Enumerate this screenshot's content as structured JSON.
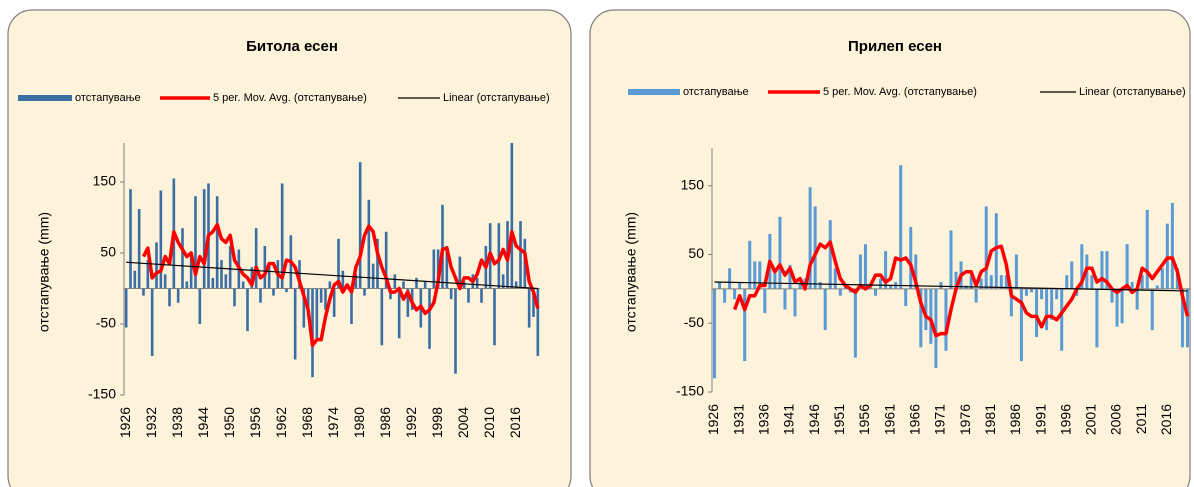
{
  "chart_data": [
    {
      "type": "bar",
      "title": "Битола есен",
      "y_label": "отстапување (mm)",
      "x": [
        1926,
        1927,
        1928,
        1929,
        1930,
        1931,
        1932,
        1933,
        1934,
        1935,
        1936,
        1937,
        1938,
        1939,
        1940,
        1941,
        1942,
        1943,
        1944,
        1945,
        1946,
        1947,
        1948,
        1949,
        1950,
        1951,
        1952,
        1953,
        1954,
        1955,
        1956,
        1957,
        1958,
        1959,
        1960,
        1961,
        1962,
        1963,
        1964,
        1965,
        1966,
        1967,
        1968,
        1969,
        1970,
        1971,
        1972,
        1973,
        1974,
        1975,
        1976,
        1977,
        1978,
        1979,
        1980,
        1981,
        1982,
        1983,
        1984,
        1985,
        1986,
        1987,
        1988,
        1989,
        1990,
        1991,
        1992,
        1993,
        1994,
        1995,
        1996,
        1997,
        1998,
        1999,
        2000,
        2001,
        2002,
        2003,
        2004,
        2005,
        2006,
        2007,
        2008,
        2009,
        2010,
        2011,
        2012,
        2013,
        2014,
        2015,
        2016,
        2017,
        2018,
        2019,
        2020,
        2021
      ],
      "xlim": [
        1925.5,
        2021.5
      ],
      "xticks": [
        1926,
        1932,
        1938,
        1944,
        1950,
        1956,
        1962,
        1968,
        1974,
        1980,
        1986,
        1992,
        1998,
        2004,
        2010,
        2016
      ],
      "ylim": [
        -150,
        205
      ],
      "yticks": [
        -150,
        -50,
        50,
        150
      ],
      "series": [
        {
          "name": "отстапување",
          "type": "bar",
          "color": "#3a6ea5",
          "values": [
            -55,
            140,
            25,
            112,
            -10,
            40,
            -95,
            65,
            138,
            20,
            -25,
            155,
            -20,
            85,
            10,
            50,
            130,
            -50,
            140,
            148,
            15,
            130,
            40,
            20,
            60,
            -25,
            55,
            10,
            -60,
            30,
            85,
            -20,
            60,
            35,
            -10,
            40,
            148,
            -5,
            75,
            -100,
            40,
            -55,
            -40,
            -125,
            -70,
            -20,
            -30,
            10,
            -40,
            70,
            25,
            5,
            -50,
            20,
            178,
            -10,
            125,
            35,
            70,
            -80,
            80,
            -15,
            20,
            -70,
            10,
            -40,
            -30,
            15,
            -55,
            10,
            -85,
            55,
            55,
            118,
            60,
            -15,
            -120,
            45,
            10,
            -20,
            20,
            15,
            -20,
            60,
            92,
            -80,
            92,
            20,
            95,
            205,
            10,
            95,
            70,
            -55,
            -40,
            -95
          ]
        },
        {
          "name": "5 per. Mov. Avg. (отстапување)",
          "type": "line",
          "color": "#ff0000",
          "values": [
            null,
            null,
            null,
            null,
            45,
            57,
            15,
            22,
            25,
            45,
            35,
            80,
            65,
            55,
            45,
            50,
            20,
            45,
            35,
            75,
            80,
            90,
            70,
            65,
            75,
            40,
            30,
            20,
            15,
            5,
            30,
            15,
            20,
            35,
            35,
            20,
            15,
            40,
            38,
            30,
            10,
            -10,
            -30,
            -80,
            -72,
            -72,
            -40,
            -15,
            5,
            10,
            -5,
            5,
            -5,
            30,
            45,
            75,
            88,
            80,
            50,
            30,
            15,
            -5,
            -5,
            0,
            -15,
            -5,
            -20,
            -30,
            -25,
            -35,
            -30,
            -20,
            10,
            55,
            57,
            30,
            15,
            0,
            15,
            15,
            10,
            20,
            40,
            30,
            50,
            35,
            40,
            55,
            40,
            80,
            60,
            55,
            50,
            10,
            -5,
            -28
          ]
        },
        {
          "name": "Linear (отстапување)",
          "type": "trend",
          "color": "#000000",
          "x": [
            1926,
            2021
          ],
          "values": [
            37,
            0
          ]
        }
      ]
    },
    {
      "type": "bar",
      "title": "Прилеп есен",
      "y_label": "отстапување (mm)",
      "x": [
        1926,
        1927,
        1928,
        1929,
        1930,
        1931,
        1932,
        1933,
        1934,
        1935,
        1936,
        1937,
        1938,
        1939,
        1940,
        1941,
        1942,
        1943,
        1944,
        1945,
        1946,
        1947,
        1948,
        1949,
        1950,
        1951,
        1952,
        1953,
        1954,
        1955,
        1956,
        1957,
        1958,
        1959,
        1960,
        1961,
        1962,
        1963,
        1964,
        1965,
        1966,
        1967,
        1968,
        1969,
        1970,
        1971,
        1972,
        1973,
        1974,
        1975,
        1976,
        1977,
        1978,
        1979,
        1980,
        1981,
        1982,
        1983,
        1984,
        1985,
        1986,
        1987,
        1988,
        1989,
        1990,
        1991,
        1992,
        1993,
        1994,
        1995,
        1996,
        1997,
        1998,
        1999,
        2000,
        2001,
        2002,
        2003,
        2004,
        2005,
        2006,
        2007,
        2008,
        2009,
        2010,
        2011,
        2012,
        2013,
        2014,
        2015,
        2016,
        2017,
        2018,
        2019,
        2020
      ],
      "xlim": [
        1925.5,
        2020.5
      ],
      "xticks": [
        1926,
        1931,
        1936,
        1941,
        1946,
        1951,
        1956,
        1961,
        1966,
        1971,
        1976,
        1981,
        1986,
        1991,
        1996,
        2001,
        2006,
        2011,
        2016
      ],
      "ylim": [
        -150,
        205
      ],
      "yticks": [
        -150,
        -50,
        50,
        150
      ],
      "series": [
        {
          "name": "отстапување",
          "type": "bar",
          "color": "#5b9bd5",
          "values": [
            -130,
            10,
            -20,
            30,
            -15,
            10,
            -105,
            70,
            40,
            40,
            -35,
            80,
            30,
            105,
            -30,
            35,
            -40,
            10,
            15,
            148,
            120,
            10,
            -60,
            100,
            30,
            -10,
            5,
            -5,
            -100,
            50,
            65,
            5,
            -10,
            15,
            55,
            5,
            10,
            180,
            -25,
            90,
            50,
            -85,
            -60,
            -80,
            -115,
            10,
            -90,
            85,
            25,
            40,
            5,
            20,
            -20,
            15,
            120,
            20,
            110,
            20,
            20,
            -40,
            50,
            -105,
            -10,
            -5,
            -70,
            -15,
            -60,
            -45,
            -15,
            -90,
            20,
            40,
            -10,
            65,
            50,
            20,
            -85,
            55,
            55,
            -20,
            -55,
            -50,
            65,
            10,
            -30,
            20,
            115,
            -60,
            5,
            30,
            95,
            125,
            30,
            -85,
            -85
          ]
        },
        {
          "name": "5 per. Mov. Avg. (отстапување)",
          "type": "line",
          "color": "#ff0000",
          "values": [
            null,
            null,
            null,
            null,
            -30,
            -10,
            -30,
            -10,
            -10,
            5,
            5,
            40,
            25,
            35,
            20,
            30,
            10,
            15,
            0,
            35,
            50,
            65,
            60,
            68,
            40,
            15,
            5,
            0,
            -5,
            5,
            0,
            5,
            20,
            20,
            10,
            15,
            45,
            42,
            45,
            35,
            10,
            -20,
            -40,
            -45,
            -68,
            -65,
            -65,
            -30,
            0,
            20,
            25,
            25,
            5,
            25,
            30,
            55,
            60,
            62,
            35,
            -10,
            -15,
            -20,
            -35,
            -40,
            -40,
            -55,
            -40,
            -40,
            -45,
            -35,
            -25,
            -15,
            0,
            10,
            30,
            30,
            10,
            15,
            10,
            0,
            -5,
            0,
            5,
            -5,
            0,
            30,
            25,
            15,
            25,
            35,
            45,
            45,
            25,
            -10,
            -40
          ]
        },
        {
          "name": "Linear (отстапување)",
          "type": "trend",
          "color": "#000000",
          "x": [
            1926,
            2020
          ],
          "values": [
            10,
            -3
          ]
        }
      ]
    }
  ]
}
